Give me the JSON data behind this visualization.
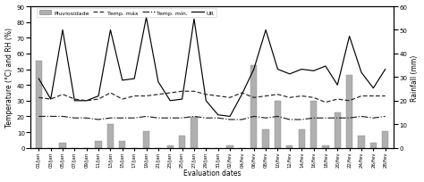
{
  "dates": [
    "01/jan",
    "03/jan",
    "05/jan",
    "07/jan",
    "09/jan",
    "11/jan",
    "13/jan",
    "15/jan",
    "17/jan",
    "19/jan",
    "21/jan",
    "23/jan",
    "25/jan",
    "27/jan",
    "29/jan",
    "31/jan",
    "02/fev",
    "04/fev",
    "06/fev",
    "08/fev",
    "10/fev",
    "12/fev",
    "14/fev",
    "16/fev",
    "18/fev",
    "20/fev",
    "22/fev",
    "24/fev",
    "26/fev",
    "28/fev"
  ],
  "rainfall": [
    37,
    0,
    2,
    0,
    0,
    3,
    10,
    3,
    0,
    7,
    0,
    1,
    5,
    13,
    0,
    0,
    1,
    0,
    35,
    8,
    20,
    1,
    8,
    20,
    1,
    15,
    31,
    5,
    2,
    7
  ],
  "temp_max": [
    32,
    31,
    34,
    31,
    30,
    31,
    35,
    31,
    33,
    33,
    34,
    35,
    36,
    36,
    34,
    33,
    32,
    35,
    32,
    33,
    34,
    32,
    33,
    32,
    29,
    31,
    30,
    33,
    33,
    33
  ],
  "temp_min": [
    20,
    20,
    20,
    19,
    19,
    18,
    19,
    19,
    19,
    20,
    19,
    19,
    19,
    20,
    19,
    19,
    18,
    18,
    20,
    19,
    20,
    18,
    18,
    19,
    19,
    19,
    19,
    20,
    19,
    20
  ],
  "ur": [
    44,
    31,
    75,
    30,
    30,
    33,
    75,
    43,
    44,
    83,
    42,
    30,
    31,
    82,
    30,
    21,
    20,
    34,
    50,
    75,
    50,
    47,
    50,
    49,
    52,
    40,
    71,
    48,
    38,
    50
  ],
  "ylabel_left": "Temperature (°C) and RH (%)",
  "ylabel_right": "Rainfall (mm)",
  "xlabel": "Evaluation dates",
  "legend_labels": [
    "Pluviosidade",
    "Temp. máx",
    "Temp. mín.",
    "UR"
  ],
  "ylim_left": [
    0,
    90
  ],
  "ylim_right": [
    0,
    60
  ],
  "yticks_left": [
    0,
    10,
    20,
    30,
    40,
    50,
    60,
    70,
    80,
    90
  ],
  "yticks_right": [
    0,
    10,
    20,
    30,
    40,
    50,
    60
  ],
  "bar_color": "#b0b0b0",
  "bar_edgecolor": "#888888",
  "line_color_dark": "#222222",
  "line_color_ur": "#000000",
  "figsize": [
    4.74,
    2.05
  ],
  "dpi": 100
}
